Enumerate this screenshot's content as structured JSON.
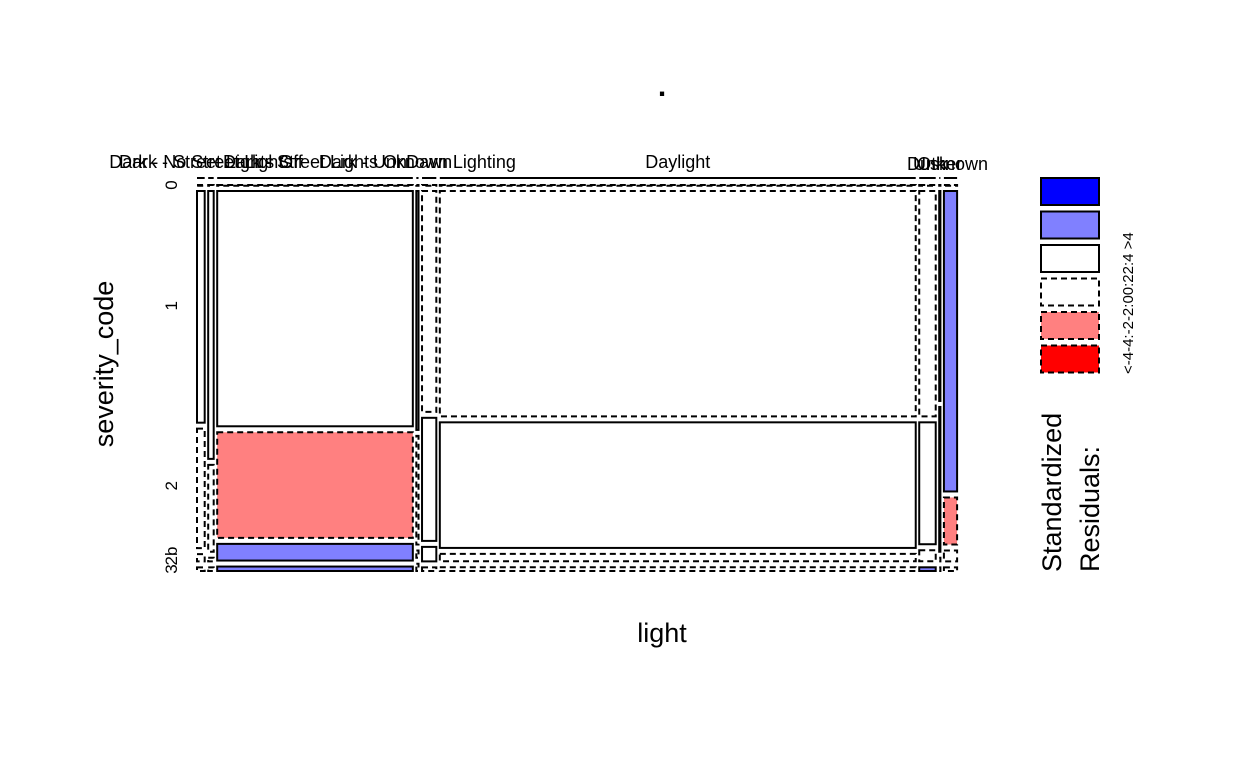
{
  "chart_data": {
    "type": "mosaic",
    "title": ".",
    "xlabel": "light",
    "ylabel": "severity_code",
    "x_categories": [
      "Dark - No Street Lights",
      "Dark - Street Lights Off",
      "Dark - Street Lights On",
      "Dark - Unknown Lighting",
      "Dawn",
      "Daylight",
      "Dusk",
      "Other",
      "Unknown"
    ],
    "x_category_labels": [
      "Dark - No Street Lights",
      "Dark - Street Lights Off",
      "Dark - Street Lights On",
      "Dark - Unknown Lighting",
      "Dawn",
      "Daylight",
      "Dusk",
      "Other",
      "Unknown"
    ],
    "y_categories": [
      "0",
      "1",
      "2",
      "2b",
      "3"
    ],
    "x_proportions": [
      0.007,
      0.005,
      0.178,
      0.002,
      0.013,
      0.433,
      0.015,
      0.001,
      0.012
    ],
    "cells": [
      {
        "x": "Dark - No Street Lights",
        "props": [
          0.0,
          0.64,
          0.33,
          0.02,
          0.01
        ],
        "styles": [
          "dash",
          "solid",
          "dash",
          "dash",
          "dash"
        ]
      },
      {
        "x": "Dark - Street Lights Off",
        "props": [
          0.0,
          0.74,
          0.24,
          0.01,
          0.01
        ],
        "styles": [
          "dash",
          "solid",
          "dash",
          "dash",
          "dash"
        ]
      },
      {
        "x": "Dark - Street Lights On",
        "props": [
          0.0,
          0.635,
          0.285,
          0.045,
          0.012
        ],
        "styles": [
          "dash",
          "solid",
          "pink",
          "lblue",
          "lblue"
        ]
      },
      {
        "x": "Dark - Unknown Lighting",
        "props": [
          0.0,
          0.66,
          0.3,
          0.02,
          0.02
        ],
        "styles": [
          "dash",
          "solid",
          "dash",
          "dash",
          "dash"
        ]
      },
      {
        "x": "Dawn",
        "props": [
          0.0,
          0.61,
          0.34,
          0.04,
          0.01
        ],
        "styles": [
          "dash",
          "dash",
          "solid",
          "solid",
          "dash"
        ]
      },
      {
        "x": "Daylight",
        "props": [
          0.0,
          0.61,
          0.34,
          0.02,
          0.01
        ],
        "styles": [
          "dash",
          "dash",
          "solid",
          "dash",
          "dash"
        ]
      },
      {
        "x": "Dusk",
        "props": [
          0.0,
          0.61,
          0.33,
          0.03,
          0.01
        ],
        "styles": [
          "dash",
          "dash",
          "solid",
          "dash",
          "lblue"
        ]
      },
      {
        "x": "Other",
        "props": [
          0.0,
          0.58,
          0.4,
          0.01,
          0.01
        ],
        "styles": [
          "dash",
          "solid",
          "solid",
          "dash",
          "dash"
        ]
      },
      {
        "x": "Unknown",
        "props": [
          0.0,
          0.83,
          0.13,
          0.03,
          0.01
        ],
        "styles": [
          "dash",
          "lblue",
          "pink",
          "dash",
          "dash"
        ]
      }
    ],
    "legend": {
      "title_lines": [
        "Standardized",
        "Residuals:"
      ],
      "label": "<-4-4:-2-2:00:22:4 >4",
      "entries": [
        {
          "range": ">4",
          "fill": "#0000ff",
          "border": "solid"
        },
        {
          "range": "2:4",
          "fill": "#8080ff",
          "border": "solid"
        },
        {
          "range": "0:2",
          "fill": "#ffffff",
          "border": "solid"
        },
        {
          "range": "-2:0",
          "fill": "#ffffff",
          "border": "dashed"
        },
        {
          "range": "-4:-2",
          "fill": "#ff8080",
          "border": "dashed"
        },
        {
          "range": "<-4",
          "fill": "#ff0000",
          "border": "dashed"
        }
      ],
      "placement": "right"
    },
    "colors": {
      "lblue": "#8080ff",
      "pink": "#ff8080",
      "blue": "#0000ff",
      "red": "#ff0000",
      "white": "#ffffff"
    }
  }
}
